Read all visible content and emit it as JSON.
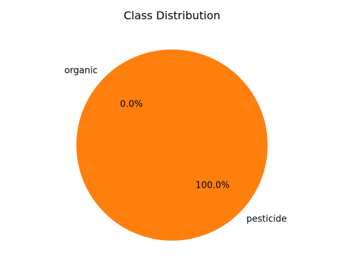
{
  "chart_data": {
    "type": "pie",
    "title": "Class Distribution",
    "categories": [
      "organic",
      "pesticide"
    ],
    "values": [
      0.0,
      100.0
    ],
    "percent_labels": [
      "0.0%",
      "100.0%"
    ],
    "colors": [
      "#1f77b4",
      "#ff7f0e"
    ],
    "legend": "none",
    "grid": false
  }
}
